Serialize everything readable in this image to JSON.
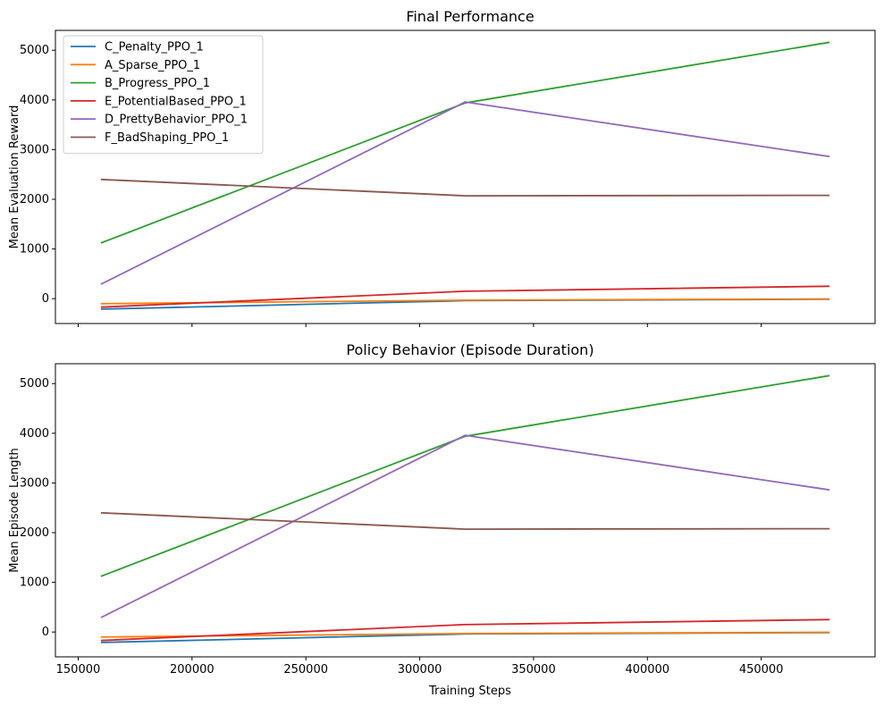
{
  "chart_data": [
    {
      "type": "line",
      "title": "Final Performance",
      "xlabel": "",
      "ylabel": "Mean Evaluation Reward",
      "xlim": [
        140000,
        500000
      ],
      "ylim": [
        -500,
        5400
      ],
      "xticks": [
        150000,
        200000,
        250000,
        300000,
        350000,
        400000,
        450000
      ],
      "yticks": [
        0,
        1000,
        2000,
        3000,
        4000,
        5000
      ],
      "show_xtick_labels": false,
      "legend": "top-left",
      "x": [
        160000,
        320000,
        480000
      ],
      "series": [
        {
          "name": "C_Penalty_PPO_1",
          "color": "#1f77b4",
          "values": [
            -210,
            -40,
            -10
          ]
        },
        {
          "name": "A_Sparse_PPO_1",
          "color": "#ff7f0e",
          "values": [
            -100,
            -30,
            -5
          ]
        },
        {
          "name": "B_Progress_PPO_1",
          "color": "#2ca02c",
          "values": [
            1120,
            3940,
            5160
          ]
        },
        {
          "name": "E_PotentialBased_PPO_1",
          "color": "#d62728",
          "values": [
            -170,
            150,
            250
          ]
        },
        {
          "name": "D_PrettyBehavior_PPO_1",
          "color": "#9467bd",
          "values": [
            290,
            3960,
            2860
          ]
        },
        {
          "name": "F_BadShaping_PPO_1",
          "color": "#8c564b",
          "values": [
            2400,
            2070,
            2080
          ]
        }
      ]
    },
    {
      "type": "line",
      "title": "Policy Behavior (Episode Duration)",
      "xlabel": "Training Steps",
      "ylabel": "Mean Episode Length",
      "xlim": [
        140000,
        500000
      ],
      "ylim": [
        -500,
        5400
      ],
      "xticks": [
        150000,
        200000,
        250000,
        300000,
        350000,
        400000,
        450000
      ],
      "yticks": [
        0,
        1000,
        2000,
        3000,
        4000,
        5000
      ],
      "show_xtick_labels": true,
      "x": [
        160000,
        320000,
        480000
      ],
      "series": [
        {
          "name": "C_Penalty_PPO_1",
          "color": "#1f77b4",
          "values": [
            -210,
            -40,
            -10
          ]
        },
        {
          "name": "A_Sparse_PPO_1",
          "color": "#ff7f0e",
          "values": [
            -100,
            -30,
            -5
          ]
        },
        {
          "name": "B_Progress_PPO_1",
          "color": "#2ca02c",
          "values": [
            1120,
            3940,
            5160
          ]
        },
        {
          "name": "E_PotentialBased_PPO_1",
          "color": "#d62728",
          "values": [
            -170,
            150,
            250
          ]
        },
        {
          "name": "D_PrettyBehavior_PPO_1",
          "color": "#9467bd",
          "values": [
            290,
            3960,
            2860
          ]
        },
        {
          "name": "F_BadShaping_PPO_1",
          "color": "#8c564b",
          "values": [
            2400,
            2070,
            2080
          ]
        }
      ]
    }
  ]
}
